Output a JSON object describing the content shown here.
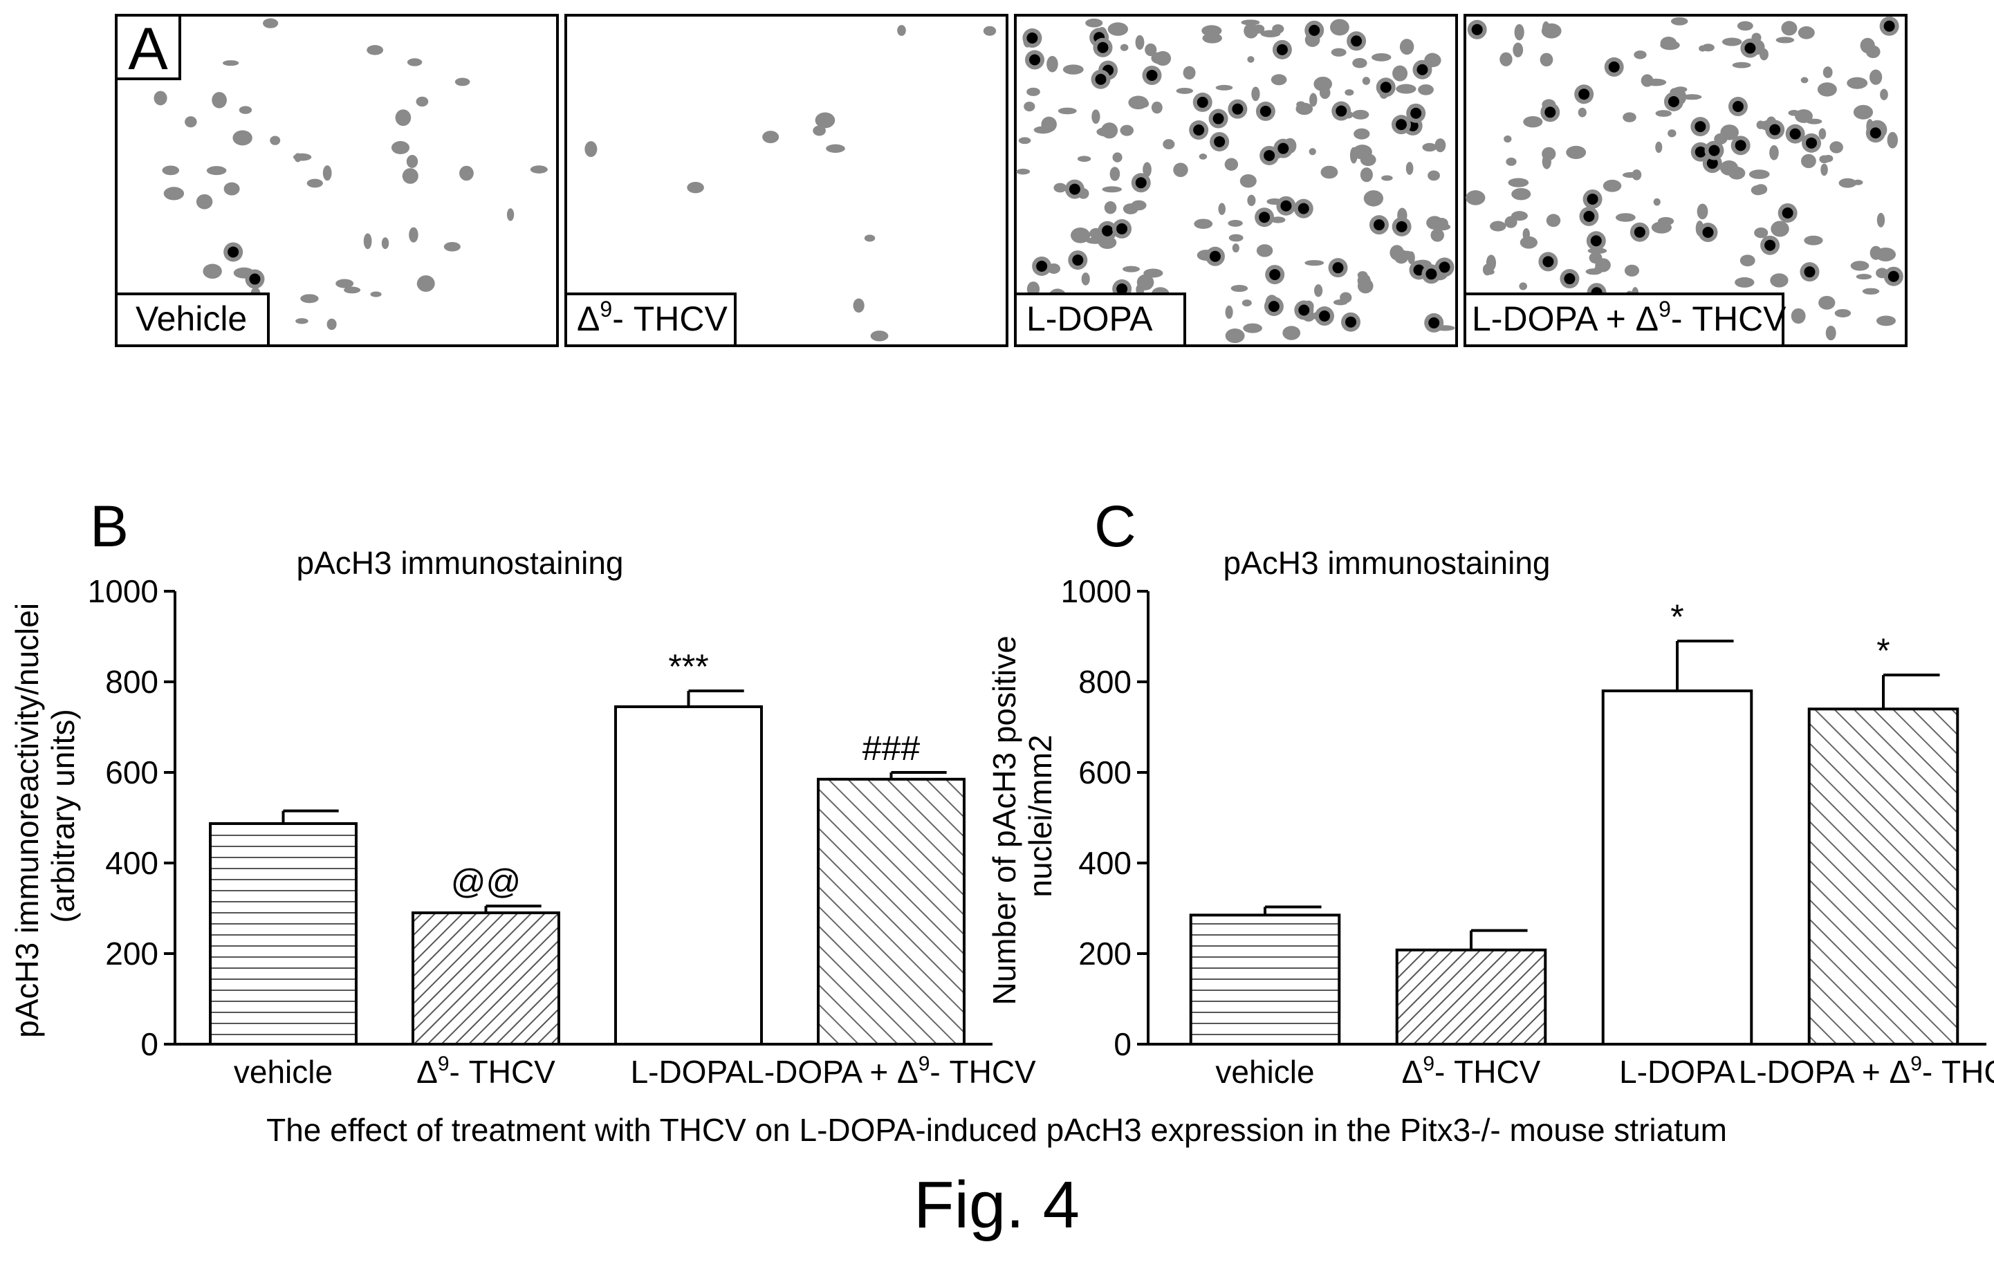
{
  "panel_a": {
    "letter": "A",
    "panels": [
      {
        "label_main": "Vehicle",
        "label_sup": "",
        "label_tail": ""
      },
      {
        "label_main": "Δ",
        "label_sup": "9",
        "label_tail": "- THCV"
      },
      {
        "label_main": "L-DOPA",
        "label_sup": "",
        "label_tail": ""
      },
      {
        "label_main": "L-DOPA + Δ",
        "label_sup": "9",
        "label_tail": "- THCV"
      }
    ]
  },
  "chart_data": [
    {
      "type": "bar",
      "panel": "B",
      "title": "pAcH3 immunostaining",
      "ylabel_lines": [
        "pAcH3 immunoreactivity/nuclei",
        "(arbitrary units)"
      ],
      "ylim": [
        0,
        1000
      ],
      "yticks": [
        "0",
        "200",
        "400",
        "600",
        "800",
        "1000"
      ],
      "categories": [
        {
          "main": "vehicle",
          "sup": "",
          "tail": ""
        },
        {
          "main": "Δ",
          "sup": "9",
          "tail": "- THCV"
        },
        {
          "main": "L-DOPA",
          "sup": "",
          "tail": ""
        },
        {
          "main": "L-DOPA + Δ",
          "sup": "9",
          "tail": "- THCV"
        }
      ],
      "values": [
        487,
        290,
        745,
        585
      ],
      "errors": [
        28,
        15,
        35,
        15
      ],
      "annotations": [
        "",
        "@@",
        "***",
        "###"
      ],
      "patterns": [
        "horizontal",
        "diagonal-dense",
        "none",
        "diagonal-back"
      ]
    },
    {
      "type": "bar",
      "panel": "C",
      "title": "pAcH3 immunostaining",
      "ylabel_lines": [
        "Number of pAcH3 positive",
        "nuclei/mm2"
      ],
      "ylim": [
        0,
        1000
      ],
      "yticks": [
        "0",
        "200",
        "400",
        "600",
        "800",
        "1000"
      ],
      "categories": [
        {
          "main": "vehicle",
          "sup": "",
          "tail": ""
        },
        {
          "main": "Δ",
          "sup": "9",
          "tail": "- THCV"
        },
        {
          "main": "L-DOPA",
          "sup": "",
          "tail": ""
        },
        {
          "main": "L-DOPA + Δ",
          "sup": "9",
          "tail": "- THCV"
        }
      ],
      "values": [
        285,
        208,
        780,
        740
      ],
      "errors": [
        18,
        43,
        110,
        75
      ],
      "annotations": [
        "",
        "",
        "*",
        "*"
      ],
      "patterns": [
        "horizontal",
        "diagonal-dense",
        "none",
        "diagonal-back"
      ]
    }
  ],
  "caption": "The effect of  treatment with THCV on L-DOPA-induced pAcH3 expression in the Pitx3-/- mouse striatum",
  "figure_label": "Fig. 4"
}
